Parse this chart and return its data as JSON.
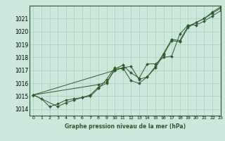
{
  "title": "Graphe pression niveau de la mer (hPa)",
  "bg_color": "#cce8dc",
  "grid_color": "#aaccbb",
  "line_color": "#2d5a2d",
  "marker_color": "#2d5a2d",
  "xlim": [
    -0.5,
    23
  ],
  "ylim": [
    1013.5,
    1022.0
  ],
  "yticks": [
    1014,
    1015,
    1016,
    1017,
    1018,
    1019,
    1020,
    1021
  ],
  "xticks": [
    0,
    1,
    2,
    3,
    4,
    5,
    6,
    7,
    8,
    9,
    10,
    11,
    12,
    13,
    14,
    15,
    16,
    17,
    18,
    19,
    20,
    21,
    22,
    23
  ],
  "series": [
    [
      1015.1,
      1014.8,
      1014.2,
      1014.4,
      1014.7,
      1014.8,
      1014.9,
      1015.1,
      1015.7,
      1016.0,
      1017.1,
      1017.4,
      1016.8,
      1016.4,
      1017.5,
      1017.5,
      1018.0,
      1018.1,
      1019.8,
      1020.5,
      1020.5,
      1020.8,
      1021.2,
      1021.6
    ],
    [
      1015.1,
      null,
      null,
      1014.2,
      1014.5,
      1014.7,
      1014.9,
      1015.0,
      1015.6,
      1016.3,
      1017.2,
      1017.1,
      null,
      null,
      null,
      null,
      null,
      null,
      null,
      null,
      null,
      null,
      null,
      null
    ],
    [
      1015.1,
      null,
      null,
      null,
      null,
      null,
      null,
      null,
      1015.9,
      1016.1,
      1017.0,
      1017.2,
      1016.2,
      1016.0,
      1016.5,
      1017.2,
      1018.2,
      1019.3,
      1019.2,
      1020.3,
      1020.7,
      1021.0,
      1021.4,
      1021.8
    ],
    [
      1015.1,
      null,
      null,
      null,
      null,
      null,
      null,
      null,
      null,
      null,
      1017.0,
      1017.2,
      1017.3,
      1016.3,
      1016.5,
      1017.3,
      1018.3,
      1019.4,
      1019.3,
      1020.4,
      1020.7,
      1021.0,
      1021.5,
      1021.9
    ]
  ]
}
